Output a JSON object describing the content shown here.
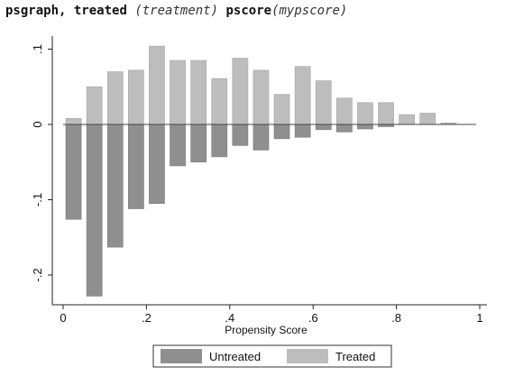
{
  "command": {
    "cmd1": "psgraph,",
    "opt1": "treated",
    "arg1": "(treatment)",
    "opt2": "pscore",
    "arg2": "(mypscore)"
  },
  "chart_data": {
    "type": "bar",
    "title": "",
    "xlabel": "Propensity Score",
    "ylabel": "",
    "xlim": [
      0,
      1
    ],
    "ylim": [
      -0.23,
      0.11
    ],
    "bin_width": 0.05,
    "x_ticks": [
      {
        "value": 0,
        "label": "0"
      },
      {
        "value": 0.2,
        "label": ".2"
      },
      {
        "value": 0.4,
        "label": ".4"
      },
      {
        "value": 0.6,
        "label": ".6"
      },
      {
        "value": 0.8,
        "label": ".8"
      },
      {
        "value": 1,
        "label": "1"
      }
    ],
    "y_ticks": [
      {
        "value": 0.1,
        "label": ".1"
      },
      {
        "value": 0,
        "label": "0"
      },
      {
        "value": -0.1,
        "label": "-.1"
      },
      {
        "value": -0.2,
        "label": "-.2"
      }
    ],
    "grid": false,
    "legend_position": "bottom",
    "colors": {
      "untreated": "#8f8f8f",
      "treated": "#bdbdbd"
    },
    "bin_starts": [
      0,
      0.05,
      0.1,
      0.15,
      0.2,
      0.25,
      0.3,
      0.35,
      0.4,
      0.45,
      0.5,
      0.55,
      0.6,
      0.65,
      0.7,
      0.75,
      0.8,
      0.85,
      0.9
    ],
    "series": [
      {
        "name": "Treated",
        "values": [
          0.008,
          0.05,
          0.07,
          0.072,
          0.104,
          0.085,
          0.085,
          0.061,
          0.088,
          0.072,
          0.04,
          0.077,
          0.058,
          0.035,
          0.029,
          0.029,
          0.013,
          0.015,
          0.002
        ]
      },
      {
        "name": "Untreated",
        "values": [
          -0.126,
          -0.228,
          -0.163,
          -0.112,
          -0.105,
          -0.055,
          -0.05,
          -0.043,
          -0.028,
          -0.034,
          -0.019,
          -0.017,
          -0.007,
          -0.01,
          -0.006,
          -0.003,
          0,
          0,
          0
        ]
      }
    ]
  }
}
